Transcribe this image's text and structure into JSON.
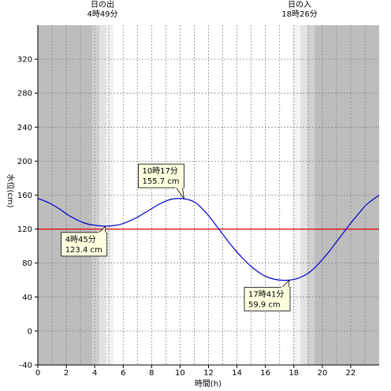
{
  "chart_data": {
    "type": "line",
    "xlabel": "時間(h)",
    "ylabel": "水位(cm)",
    "xlim": [
      0,
      24
    ],
    "ylim": [
      -40,
      360
    ],
    "x_ticks": [
      0,
      2,
      4,
      6,
      8,
      10,
      12,
      14,
      16,
      18,
      20,
      22
    ],
    "y_ticks": [
      -40,
      0,
      40,
      80,
      120,
      160,
      200,
      240,
      280,
      320
    ],
    "reference_line": {
      "y": 120,
      "color": "#e00000"
    },
    "daylight": {
      "sunrise_hour": 4.8167,
      "sunset_hour": 18.4333,
      "night_color": "#bdbdbd",
      "twilight_colors": [
        "#d0d0d0",
        "#e2e2e2",
        "#f2f2f2"
      ],
      "day_color": "#ffffff"
    },
    "series": [
      {
        "color": "#0000cc",
        "x": [
          0,
          0.5,
          1,
          1.5,
          2,
          2.5,
          3,
          3.5,
          4,
          4.75,
          5.5,
          6,
          6.5,
          7,
          7.5,
          8,
          8.5,
          9,
          9.5,
          10.28,
          11,
          11.5,
          12,
          12.5,
          13,
          13.5,
          14,
          14.5,
          15,
          15.5,
          16,
          16.5,
          17,
          17.68,
          18.3,
          19,
          19.5,
          20,
          20.5,
          21,
          21.5,
          22,
          22.5,
          23,
          23.5,
          24
        ],
        "y": [
          156,
          153,
          149,
          144,
          138,
          133,
          129,
          126,
          124.5,
          123.4,
          124.5,
          126.5,
          130,
          134,
          139,
          144,
          149,
          153,
          155.5,
          155.7,
          152,
          145,
          136,
          125,
          114,
          103,
          93,
          84,
          76,
          69.5,
          64.5,
          61.5,
          60,
          59.9,
          62,
          68,
          75,
          84,
          94,
          105,
          116,
          127,
          137,
          147,
          154,
          160
        ]
      }
    ],
    "annotations": [
      {
        "time": "10時17分",
        "value": "155.7 cm",
        "x": 10.28,
        "y": 155.7
      },
      {
        "time": "4時45分",
        "value": "123.4 cm",
        "x": 4.75,
        "y": 123.4
      },
      {
        "time": "17時41分",
        "value": "59.9 cm",
        "x": 17.68,
        "y": 59.9
      }
    ],
    "sun_labels": {
      "sunrise_title": "日の出",
      "sunrise_time": "4時49分",
      "sunset_title": "日の入",
      "sunset_time": "18時26分"
    }
  }
}
